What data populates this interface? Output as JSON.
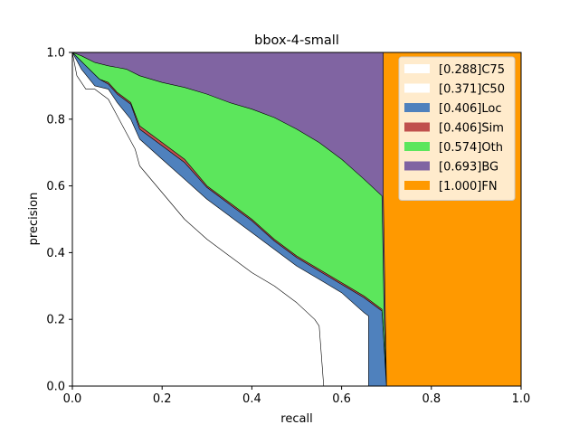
{
  "chart_data": {
    "type": "area",
    "title": "bbox-4-small",
    "xlabel": "recall",
    "ylabel": "precision",
    "xlim": [
      0,
      1
    ],
    "ylim": [
      0,
      1
    ],
    "xticks": [
      "0.0",
      "0.2",
      "0.4",
      "0.6",
      "0.8",
      "1.0"
    ],
    "yticks": [
      "0.0",
      "0.2",
      "0.4",
      "0.6",
      "0.8",
      "1.0"
    ],
    "grid": false,
    "legend_position": "top-right",
    "series": [
      {
        "name": "[1.000]FN",
        "color": "#FF9900",
        "points": [
          [
            0,
            1
          ],
          [
            1,
            1
          ],
          [
            1,
            0
          ],
          [
            0,
            0
          ]
        ]
      },
      {
        "name": "[0.693]BG",
        "color": "#8064A2",
        "points": [
          [
            0,
            1
          ],
          [
            0.693,
            1
          ],
          [
            0.693,
            0.57
          ],
          [
            0.7,
            0
          ],
          [
            0,
            0
          ]
        ]
      },
      {
        "name": "[0.574]Oth",
        "color": "#5CE65C",
        "points": [
          [
            0,
            1
          ],
          [
            0.02,
            0.99
          ],
          [
            0.05,
            0.97
          ],
          [
            0.08,
            0.96
          ],
          [
            0.12,
            0.95
          ],
          [
            0.15,
            0.93
          ],
          [
            0.2,
            0.91
          ],
          [
            0.25,
            0.895
          ],
          [
            0.3,
            0.875
          ],
          [
            0.35,
            0.85
          ],
          [
            0.4,
            0.83
          ],
          [
            0.45,
            0.805
          ],
          [
            0.5,
            0.77
          ],
          [
            0.55,
            0.73
          ],
          [
            0.6,
            0.68
          ],
          [
            0.65,
            0.62
          ],
          [
            0.69,
            0.57
          ],
          [
            0.695,
            0.2
          ],
          [
            0.7,
            0
          ],
          [
            0,
            0
          ]
        ]
      },
      {
        "name": "[0.406]Sim",
        "color": "#C0504D",
        "points": [
          [
            0,
            1
          ],
          [
            0.03,
            0.96
          ],
          [
            0.06,
            0.92
          ],
          [
            0.08,
            0.91
          ],
          [
            0.1,
            0.88
          ],
          [
            0.13,
            0.85
          ],
          [
            0.15,
            0.78
          ],
          [
            0.2,
            0.73
          ],
          [
            0.25,
            0.68
          ],
          [
            0.3,
            0.6
          ],
          [
            0.35,
            0.55
          ],
          [
            0.4,
            0.5
          ],
          [
            0.45,
            0.44
          ],
          [
            0.5,
            0.39
          ],
          [
            0.55,
            0.35
          ],
          [
            0.6,
            0.31
          ],
          [
            0.65,
            0.27
          ],
          [
            0.69,
            0.23
          ],
          [
            0.7,
            0
          ],
          [
            0,
            0
          ]
        ]
      },
      {
        "name": "[0.406]Loc",
        "color": "#4F81BD",
        "points": [
          [
            0,
            1
          ],
          [
            0.03,
            0.96
          ],
          [
            0.06,
            0.92
          ],
          [
            0.08,
            0.905
          ],
          [
            0.1,
            0.875
          ],
          [
            0.13,
            0.845
          ],
          [
            0.15,
            0.77
          ],
          [
            0.2,
            0.72
          ],
          [
            0.25,
            0.67
          ],
          [
            0.3,
            0.595
          ],
          [
            0.35,
            0.545
          ],
          [
            0.4,
            0.495
          ],
          [
            0.45,
            0.435
          ],
          [
            0.5,
            0.385
          ],
          [
            0.55,
            0.345
          ],
          [
            0.6,
            0.305
          ],
          [
            0.65,
            0.265
          ],
          [
            0.69,
            0.225
          ],
          [
            0.7,
            0
          ],
          [
            0,
            0
          ]
        ]
      },
      {
        "name": "[0.371]C50",
        "color": "#FFFFFF",
        "points": [
          [
            0,
            1
          ],
          [
            0.02,
            0.95
          ],
          [
            0.05,
            0.9
          ],
          [
            0.08,
            0.89
          ],
          [
            0.1,
            0.85
          ],
          [
            0.13,
            0.8
          ],
          [
            0.15,
            0.74
          ],
          [
            0.2,
            0.68
          ],
          [
            0.25,
            0.62
          ],
          [
            0.3,
            0.56
          ],
          [
            0.35,
            0.51
          ],
          [
            0.4,
            0.46
          ],
          [
            0.45,
            0.41
          ],
          [
            0.5,
            0.36
          ],
          [
            0.55,
            0.32
          ],
          [
            0.6,
            0.28
          ],
          [
            0.65,
            0.22
          ],
          [
            0.66,
            0.21
          ],
          [
            0.66,
            0
          ],
          [
            0,
            0
          ]
        ]
      },
      {
        "name": "[0.288]C75",
        "color": "#FFFFFF",
        "points": [
          [
            0,
            1
          ],
          [
            0.01,
            0.93
          ],
          [
            0.03,
            0.89
          ],
          [
            0.05,
            0.89
          ],
          [
            0.08,
            0.86
          ],
          [
            0.1,
            0.81
          ],
          [
            0.12,
            0.76
          ],
          [
            0.14,
            0.71
          ],
          [
            0.15,
            0.66
          ],
          [
            0.2,
            0.58
          ],
          [
            0.25,
            0.5
          ],
          [
            0.3,
            0.44
          ],
          [
            0.35,
            0.39
          ],
          [
            0.4,
            0.34
          ],
          [
            0.45,
            0.3
          ],
          [
            0.5,
            0.25
          ],
          [
            0.54,
            0.2
          ],
          [
            0.55,
            0.18
          ],
          [
            0.56,
            0
          ],
          [
            0,
            0
          ]
        ]
      }
    ]
  }
}
